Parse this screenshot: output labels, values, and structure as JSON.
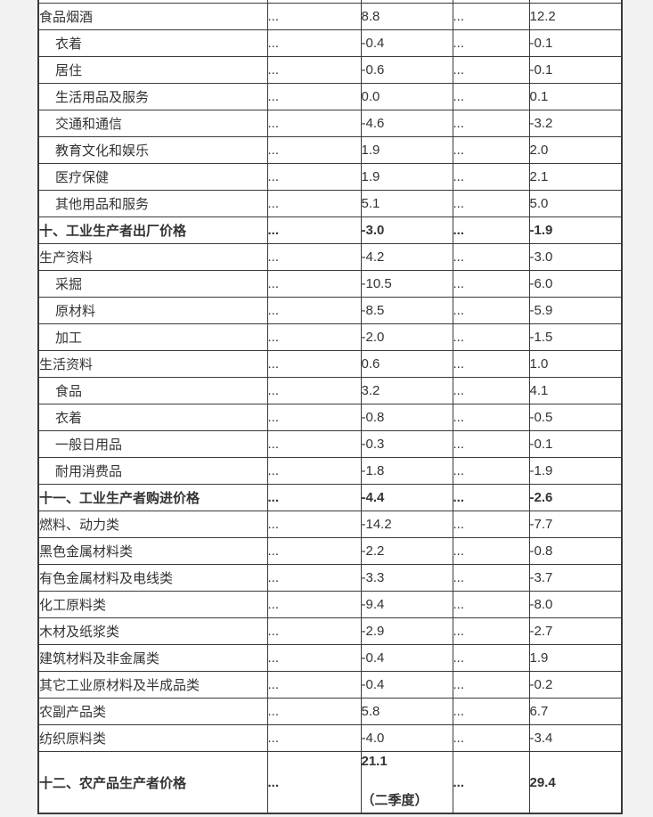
{
  "colors": {
    "page_bg": "#f2f2f2",
    "cell_bg": "#ffffff",
    "border": "#3a3a3a",
    "text": "#333333"
  },
  "table": {
    "dots": "...",
    "rows": [
      {
        "label": "食品烟酒",
        "indent": 0,
        "bold": false,
        "period1": "8.8",
        "period2": "12.2"
      },
      {
        "label": "衣着",
        "indent": 1,
        "bold": false,
        "period1": "-0.4",
        "period2": "-0.1"
      },
      {
        "label": "居住",
        "indent": 1,
        "bold": false,
        "period1": "-0.6",
        "period2": "-0.1"
      },
      {
        "label": "生活用品及服务",
        "indent": 1,
        "bold": false,
        "period1": "0.0",
        "period2": "0.1"
      },
      {
        "label": "交通和通信",
        "indent": 1,
        "bold": false,
        "period1": "-4.6",
        "period2": "-3.2"
      },
      {
        "label": "教育文化和娱乐",
        "indent": 1,
        "bold": false,
        "period1": "1.9",
        "period2": "2.0"
      },
      {
        "label": "医疗保健",
        "indent": 1,
        "bold": false,
        "period1": "1.9",
        "period2": "2.1"
      },
      {
        "label": "其他用品和服务",
        "indent": 1,
        "bold": false,
        "period1": "5.1",
        "period2": "5.0"
      },
      {
        "label": "十、工业生产者出厂价格",
        "indent": 0,
        "bold": true,
        "period1": "-3.0",
        "period2": "-1.9"
      },
      {
        "label": "生产资料",
        "indent": 0,
        "bold": false,
        "period1": "-4.2",
        "period2": "-3.0"
      },
      {
        "label": "采掘",
        "indent": 1,
        "bold": false,
        "period1": "-10.5",
        "period2": "-6.0"
      },
      {
        "label": "原材料",
        "indent": 1,
        "bold": false,
        "period1": "-8.5",
        "period2": "-5.9"
      },
      {
        "label": "加工",
        "indent": 1,
        "bold": false,
        "period1": "-2.0",
        "period2": "-1.5"
      },
      {
        "label": "生活资料",
        "indent": 0,
        "bold": false,
        "period1": "0.6",
        "period2": "1.0"
      },
      {
        "label": "食品",
        "indent": 1,
        "bold": false,
        "period1": "3.2",
        "period2": "4.1"
      },
      {
        "label": "衣着",
        "indent": 1,
        "bold": false,
        "period1": "-0.8",
        "period2": "-0.5"
      },
      {
        "label": "一般日用品",
        "indent": 1,
        "bold": false,
        "period1": "-0.3",
        "period2": "-0.1"
      },
      {
        "label": "耐用消费品",
        "indent": 1,
        "bold": false,
        "period1": "-1.8",
        "period2": "-1.9"
      },
      {
        "label": "十一、工业生产者购进价格",
        "indent": 0,
        "bold": true,
        "period1": "-4.4",
        "period2": "-2.6"
      },
      {
        "label": "燃料、动力类",
        "indent": 0,
        "bold": false,
        "period1": "-14.2",
        "period2": "-7.7"
      },
      {
        "label": "黑色金属材料类",
        "indent": 0,
        "bold": false,
        "period1": "-2.2",
        "period2": "-0.8"
      },
      {
        "label": "有色金属材料及电线类",
        "indent": 0,
        "bold": false,
        "period1": "-3.3",
        "period2": "-3.7"
      },
      {
        "label": "化工原料类",
        "indent": 0,
        "bold": false,
        "period1": "-9.4",
        "period2": "-8.0"
      },
      {
        "label": "木材及纸浆类",
        "indent": 0,
        "bold": false,
        "period1": "-2.9",
        "period2": "-2.7"
      },
      {
        "label": "建筑材料及非金属类",
        "indent": 0,
        "bold": false,
        "period1": "-0.4",
        "period2": "1.9"
      },
      {
        "label": "其它工业原材料及半成品类",
        "indent": 0,
        "bold": false,
        "period1": "-0.4",
        "period2": "-0.2"
      },
      {
        "label": "农副产品类",
        "indent": 0,
        "bold": false,
        "period1": "5.8",
        "period2": "6.7"
      },
      {
        "label": "纺织原料类",
        "indent": 0,
        "bold": false,
        "period1": "-4.0",
        "period2": "-3.4"
      },
      {
        "label": "十二、农产品生产者价格",
        "indent": 0,
        "bold": true,
        "tall": true,
        "period1": "21.1",
        "period1_note": "（二季度）",
        "period2": "29.4"
      }
    ]
  }
}
